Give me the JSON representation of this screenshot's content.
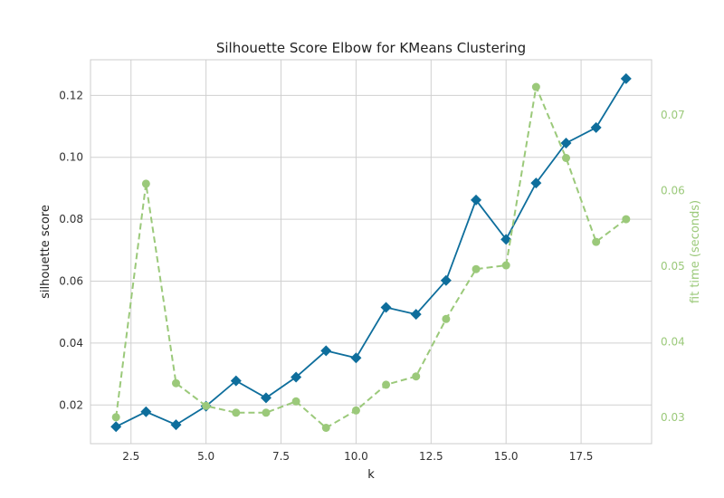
{
  "chart_data": {
    "type": "line",
    "title": "Silhouette Score Elbow for KMeans Clustering",
    "xlabel": "k",
    "ylabel": "silhouette score",
    "ylabel_right": "fit time (seconds)",
    "x": [
      2,
      3,
      4,
      5,
      6,
      7,
      8,
      9,
      10,
      11,
      12,
      13,
      14,
      15,
      16,
      17,
      18,
      19
    ],
    "xlim": [
      1.15,
      19.85
    ],
    "ylim": [
      0.0075,
      0.1315
    ],
    "ylim_right": [
      0.0265,
      0.0773
    ],
    "x_ticks": [
      2.5,
      5.0,
      7.5,
      10.0,
      12.5,
      15.0,
      17.5
    ],
    "x_tick_labels": [
      "2.5",
      "5.0",
      "7.5",
      "10.0",
      "12.5",
      "15.0",
      "17.5"
    ],
    "y_ticks": [
      0.02,
      0.04,
      0.06,
      0.08,
      0.1,
      0.12
    ],
    "y_tick_labels": [
      "0.02",
      "0.04",
      "0.06",
      "0.08",
      "0.10",
      "0.12"
    ],
    "y_ticks_right": [
      0.03,
      0.04,
      0.05,
      0.06,
      0.07
    ],
    "y_tick_labels_right": [
      "0.03",
      "0.04",
      "0.05",
      "0.06",
      "0.07"
    ],
    "grid": true,
    "series": [
      {
        "axis": "left",
        "color": "#0e6e9c",
        "marker": "diamond",
        "line": "solid",
        "values": [
          0.013,
          0.0178,
          0.0136,
          0.0196,
          0.0278,
          0.0223,
          0.029,
          0.0375,
          0.0352,
          0.0515,
          0.0493,
          0.0602,
          0.0862,
          0.0735,
          0.0917,
          0.1046,
          0.1096,
          0.1254
        ]
      },
      {
        "axis": "right",
        "color": "#9bc97a",
        "marker": "circle",
        "line": "dashed",
        "values": [
          0.03,
          0.0609,
          0.0345,
          0.0315,
          0.0306,
          0.0306,
          0.0321,
          0.0286,
          0.0309,
          0.0343,
          0.0354,
          0.043,
          0.0496,
          0.0501,
          0.0737,
          0.0643,
          0.0532,
          0.0562
        ]
      }
    ]
  }
}
